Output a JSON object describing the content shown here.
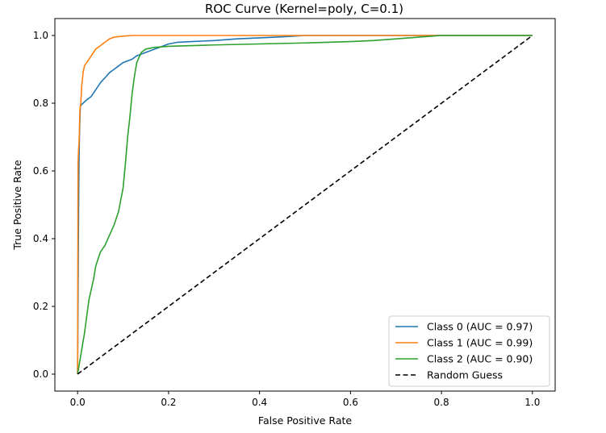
{
  "chart_data": {
    "type": "line",
    "title": "ROC Curve (Kernel=poly, C=0.1)",
    "xlabel": "False Positive Rate",
    "ylabel": "True Positive Rate",
    "xlim": [
      -0.05,
      1.05
    ],
    "ylim": [
      -0.05,
      1.05
    ],
    "xticks": [
      0.0,
      0.2,
      0.4,
      0.6,
      0.8,
      1.0
    ],
    "yticks": [
      0.0,
      0.2,
      0.4,
      0.6,
      0.8,
      1.0
    ],
    "xtick_labels": [
      "0.0",
      "0.2",
      "0.4",
      "0.6",
      "0.8",
      "1.0"
    ],
    "ytick_labels": [
      "0.0",
      "0.2",
      "0.4",
      "0.6",
      "0.8",
      "1.0"
    ],
    "grid": false,
    "legend_position": "lower-right",
    "series": [
      {
        "name": "Class 0 (AUC = 0.97)",
        "color": "#1f77b4",
        "dash": false,
        "x": [
          0,
          0.002,
          0.003,
          0.004,
          0.005,
          0.006,
          0.008,
          0.012,
          0.02,
          0.03,
          0.04,
          0.05,
          0.06,
          0.07,
          0.08,
          0.09,
          0.1,
          0.11,
          0.12,
          0.13,
          0.14,
          0.16,
          0.18,
          0.2,
          0.22,
          0.25,
          0.3,
          0.35,
          0.4,
          0.45,
          0.5,
          0.6,
          0.7,
          0.8,
          0.9,
          1.0
        ],
        "y": [
          0,
          0.45,
          0.62,
          0.7,
          0.75,
          0.79,
          0.795,
          0.8,
          0.81,
          0.82,
          0.84,
          0.86,
          0.875,
          0.89,
          0.9,
          0.91,
          0.92,
          0.925,
          0.93,
          0.94,
          0.945,
          0.955,
          0.965,
          0.975,
          0.98,
          0.982,
          0.985,
          0.99,
          0.993,
          0.996,
          1.0,
          1.0,
          1.0,
          1.0,
          1.0,
          1.0
        ]
      },
      {
        "name": "Class 1 (AUC = 0.99)",
        "color": "#ff7f0e",
        "dash": false,
        "x": [
          0,
          0.001,
          0.002,
          0.003,
          0.004,
          0.005,
          0.007,
          0.009,
          0.012,
          0.015,
          0.02,
          0.025,
          0.03,
          0.035,
          0.04,
          0.05,
          0.06,
          0.07,
          0.08,
          0.1,
          0.12,
          0.15,
          0.2,
          0.3,
          0.5,
          0.7,
          1.0
        ],
        "y": [
          0,
          0.62,
          0.66,
          0.68,
          0.72,
          0.78,
          0.8,
          0.85,
          0.89,
          0.91,
          0.92,
          0.93,
          0.94,
          0.95,
          0.96,
          0.97,
          0.98,
          0.99,
          0.995,
          0.998,
          1.0,
          1.0,
          1.0,
          1.0,
          1.0,
          1.0,
          1.0
        ]
      },
      {
        "name": "Class 2 (AUC = 0.90)",
        "color": "#2ca02c",
        "dash": false,
        "x": [
          0,
          0.005,
          0.01,
          0.015,
          0.02,
          0.025,
          0.03,
          0.035,
          0.04,
          0.05,
          0.06,
          0.07,
          0.08,
          0.09,
          0.1,
          0.105,
          0.11,
          0.115,
          0.12,
          0.125,
          0.13,
          0.14,
          0.15,
          0.17,
          0.2,
          0.3,
          0.4,
          0.5,
          0.6,
          0.65,
          0.7,
          0.75,
          0.8,
          0.85,
          0.9,
          1.0
        ],
        "y": [
          0,
          0.04,
          0.08,
          0.12,
          0.17,
          0.22,
          0.25,
          0.28,
          0.32,
          0.36,
          0.38,
          0.41,
          0.44,
          0.48,
          0.55,
          0.62,
          0.7,
          0.76,
          0.83,
          0.88,
          0.92,
          0.95,
          0.96,
          0.965,
          0.968,
          0.972,
          0.975,
          0.978,
          0.982,
          0.985,
          0.99,
          0.995,
          1.0,
          1.0,
          1.0,
          1.0
        ]
      },
      {
        "name": "Random Guess",
        "color": "#000000",
        "dash": true,
        "x": [
          0,
          1
        ],
        "y": [
          0,
          1
        ]
      }
    ]
  }
}
